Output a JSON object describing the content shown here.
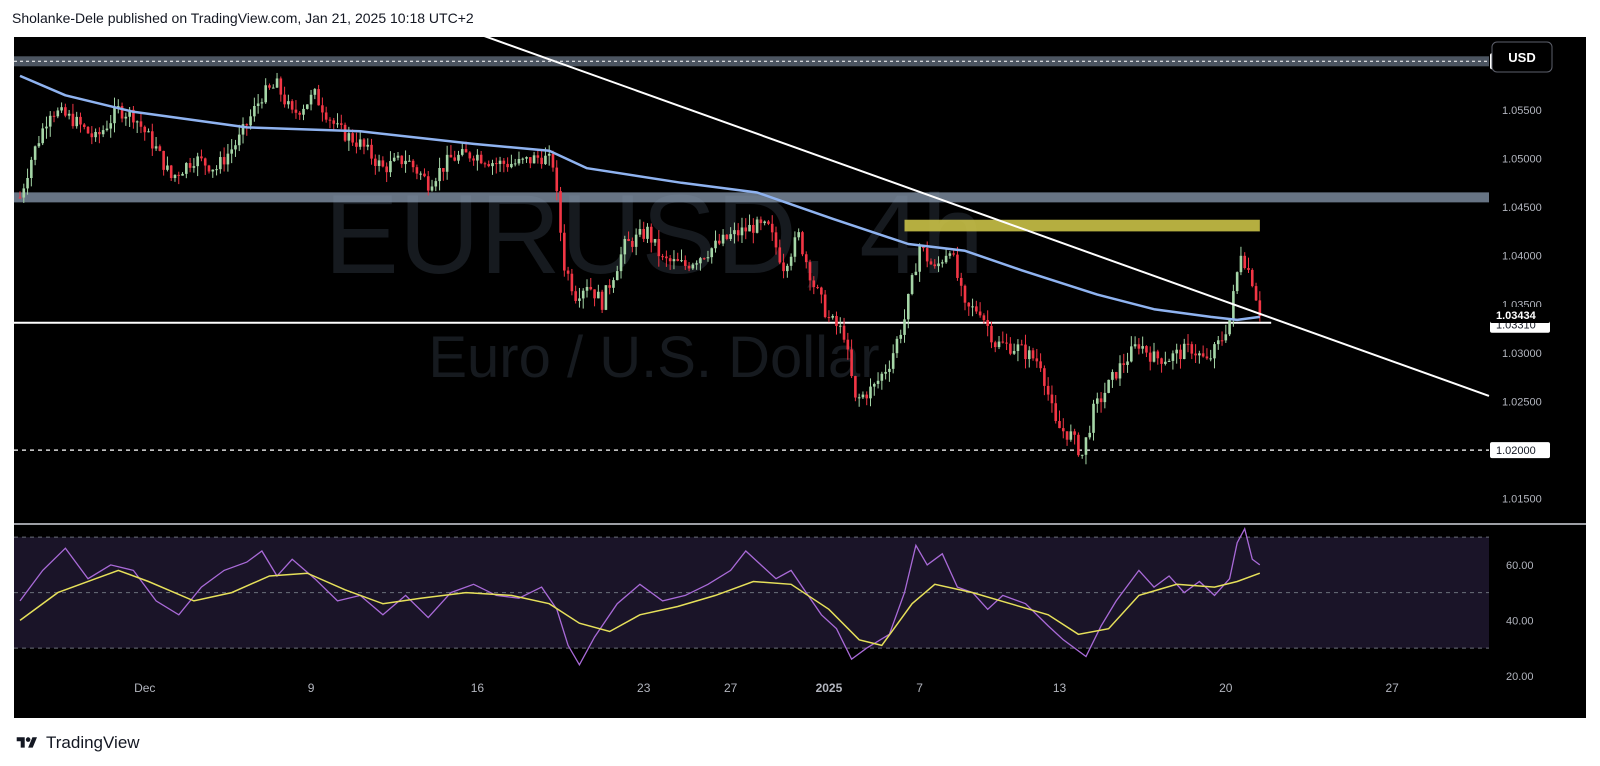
{
  "header": {
    "publisher_line": "Sholanke-Dele published on TradingView.com, Jan 21, 2025 10:18 UTC+2"
  },
  "footer": {
    "brand": "TradingView"
  },
  "colors": {
    "background": "#000000",
    "bullish": "#a5d6a7",
    "bearish": "#f23645",
    "ma": "#8fb3f0",
    "support_band": "#8a9bb0",
    "resistance_zone": "#c9c147",
    "trendline": "#ffffff",
    "rsi_line": "#a96ad8",
    "rsi_signal": "#e6e05a"
  },
  "chart_data": [
    {
      "type": "candlestick",
      "symbol": "EURUSD",
      "timeframe": "4h",
      "watermark_line1": "EURUSD, 4h",
      "watermark_line2": "Euro / U.S. Dollar",
      "currency_button": "USD",
      "ylim": [
        1.0125,
        1.0625
      ],
      "y_ticks": [
        "1.06000",
        "1.05500",
        "1.05000",
        "1.04500",
        "1.04000",
        "1.03500",
        "1.03000",
        "1.02500",
        "1.02000",
        "1.01500"
      ],
      "x_ticks": [
        "Dec",
        "9",
        "16",
        "23",
        "27",
        "2025",
        "7",
        "13",
        "20",
        "27"
      ],
      "price_labels": {
        "current": "1.03434",
        "support_line": "1.03310",
        "upper_band": "1.06000",
        "lower_dashed": "1.02000"
      },
      "levels": {
        "upper_band": 1.06,
        "mid_band": 1.046,
        "resistance_zone": [
          1.0425,
          1.0437
        ],
        "support_line": 1.0331,
        "lower_dashed": 1.02
      },
      "trendline": {
        "start": {
          "bar": 102,
          "price": 1.0655
        },
        "end": {
          "bar": 326,
          "price": 1.0343
        }
      },
      "close_path": [
        {
          "bar": 0,
          "price": 1.046
        },
        {
          "bar": 3,
          "price": 1.05
        },
        {
          "bar": 8,
          "price": 1.055
        },
        {
          "bar": 14,
          "price": 1.054
        },
        {
          "bar": 20,
          "price": 1.052
        },
        {
          "bar": 26,
          "price": 1.055
        },
        {
          "bar": 30,
          "price": 1.0545
        },
        {
          "bar": 36,
          "price": 1.051
        },
        {
          "bar": 40,
          "price": 1.048
        },
        {
          "bar": 46,
          "price": 1.05
        },
        {
          "bar": 52,
          "price": 1.049
        },
        {
          "bar": 58,
          "price": 1.052
        },
        {
          "bar": 64,
          "price": 1.0565
        },
        {
          "bar": 68,
          "price": 1.0575
        },
        {
          "bar": 72,
          "price": 1.0545
        },
        {
          "bar": 78,
          "price": 1.0565
        },
        {
          "bar": 84,
          "price": 1.053
        },
        {
          "bar": 90,
          "price": 1.0515
        },
        {
          "bar": 96,
          "price": 1.049
        },
        {
          "bar": 102,
          "price": 1.05
        },
        {
          "bar": 108,
          "price": 1.0475
        },
        {
          "bar": 114,
          "price": 1.05
        },
        {
          "bar": 120,
          "price": 1.0505
        },
        {
          "bar": 126,
          "price": 1.0495
        },
        {
          "bar": 132,
          "price": 1.0495
        },
        {
          "bar": 138,
          "price": 1.0502
        },
        {
          "bar": 141,
          "price": 1.0495
        },
        {
          "bar": 144,
          "price": 1.039
        },
        {
          "bar": 147,
          "price": 1.036
        },
        {
          "bar": 150,
          "price": 1.0372
        },
        {
          "bar": 154,
          "price": 1.0352
        },
        {
          "bar": 160,
          "price": 1.041
        },
        {
          "bar": 166,
          "price": 1.0425
        },
        {
          "bar": 170,
          "price": 1.0395
        },
        {
          "bar": 176,
          "price": 1.039
        },
        {
          "bar": 182,
          "price": 1.0405
        },
        {
          "bar": 188,
          "price": 1.042
        },
        {
          "bar": 194,
          "price": 1.043
        },
        {
          "bar": 198,
          "price": 1.0428
        },
        {
          "bar": 202,
          "price": 1.039
        },
        {
          "bar": 206,
          "price": 1.042
        },
        {
          "bar": 210,
          "price": 1.037
        },
        {
          "bar": 214,
          "price": 1.0335
        },
        {
          "bar": 218,
          "price": 1.032
        },
        {
          "bar": 221,
          "price": 1.025
        },
        {
          "bar": 226,
          "price": 1.0265
        },
        {
          "bar": 230,
          "price": 1.029
        },
        {
          "bar": 234,
          "price": 1.0335
        },
        {
          "bar": 238,
          "price": 1.041
        },
        {
          "bar": 242,
          "price": 1.0385
        },
        {
          "bar": 246,
          "price": 1.041
        },
        {
          "bar": 250,
          "price": 1.0345
        },
        {
          "bar": 254,
          "price": 1.0345
        },
        {
          "bar": 258,
          "price": 1.031
        },
        {
          "bar": 264,
          "price": 1.0305
        },
        {
          "bar": 270,
          "price": 1.029
        },
        {
          "bar": 274,
          "price": 1.0225
        },
        {
          "bar": 278,
          "price": 1.0215
        },
        {
          "bar": 281,
          "price": 1.0195
        },
        {
          "bar": 284,
          "price": 1.024
        },
        {
          "bar": 290,
          "price": 1.028
        },
        {
          "bar": 296,
          "price": 1.031
        },
        {
          "bar": 300,
          "price": 1.0295
        },
        {
          "bar": 304,
          "price": 1.0295
        },
        {
          "bar": 310,
          "price": 1.0305
        },
        {
          "bar": 314,
          "price": 1.029
        },
        {
          "bar": 318,
          "price": 1.0315
        },
        {
          "bar": 320,
          "price": 1.0335
        },
        {
          "bar": 323,
          "price": 1.0405
        },
        {
          "bar": 326,
          "price": 1.0375
        },
        {
          "bar": 328,
          "price": 1.0343
        }
      ],
      "ma_path": [
        {
          "bar": 0,
          "price": 1.0585
        },
        {
          "bar": 12,
          "price": 1.0565
        },
        {
          "bar": 30,
          "price": 1.0548
        },
        {
          "bar": 60,
          "price": 1.0532
        },
        {
          "bar": 90,
          "price": 1.0528
        },
        {
          "bar": 120,
          "price": 1.0515
        },
        {
          "bar": 140,
          "price": 1.0508
        },
        {
          "bar": 150,
          "price": 1.049
        },
        {
          "bar": 175,
          "price": 1.0475
        },
        {
          "bar": 195,
          "price": 1.0465
        },
        {
          "bar": 215,
          "price": 1.0438
        },
        {
          "bar": 235,
          "price": 1.0412
        },
        {
          "bar": 250,
          "price": 1.0405
        },
        {
          "bar": 265,
          "price": 1.0385
        },
        {
          "bar": 285,
          "price": 1.036
        },
        {
          "bar": 300,
          "price": 1.0345
        },
        {
          "bar": 315,
          "price": 1.0337
        },
        {
          "bar": 322,
          "price": 1.0334
        },
        {
          "bar": 328,
          "price": 1.0337
        }
      ]
    },
    {
      "type": "line",
      "indicator": "RSI",
      "ylim": [
        16,
        74
      ],
      "y_ticks": [
        "60.00",
        "40.00",
        "20.00"
      ],
      "bands": [
        70,
        50,
        30
      ],
      "rsi_path": [
        {
          "bar": 0,
          "price": 47
        },
        {
          "bar": 6,
          "price": 58
        },
        {
          "bar": 12,
          "price": 66
        },
        {
          "bar": 18,
          "price": 55
        },
        {
          "bar": 24,
          "price": 60
        },
        {
          "bar": 30,
          "price": 58
        },
        {
          "bar": 36,
          "price": 47
        },
        {
          "bar": 42,
          "price": 42
        },
        {
          "bar": 48,
          "price": 52
        },
        {
          "bar": 54,
          "price": 58
        },
        {
          "bar": 60,
          "price": 61
        },
        {
          "bar": 64,
          "price": 65
        },
        {
          "bar": 68,
          "price": 56
        },
        {
          "bar": 72,
          "price": 62
        },
        {
          "bar": 78,
          "price": 55
        },
        {
          "bar": 84,
          "price": 47
        },
        {
          "bar": 90,
          "price": 49
        },
        {
          "bar": 96,
          "price": 42
        },
        {
          "bar": 102,
          "price": 49
        },
        {
          "bar": 108,
          "price": 41
        },
        {
          "bar": 114,
          "price": 50
        },
        {
          "bar": 120,
          "price": 53
        },
        {
          "bar": 126,
          "price": 49
        },
        {
          "bar": 132,
          "price": 48
        },
        {
          "bar": 138,
          "price": 52
        },
        {
          "bar": 142,
          "price": 44
        },
        {
          "bar": 145,
          "price": 31
        },
        {
          "bar": 148,
          "price": 24
        },
        {
          "bar": 152,
          "price": 34
        },
        {
          "bar": 158,
          "price": 46
        },
        {
          "bar": 164,
          "price": 53
        },
        {
          "bar": 170,
          "price": 47
        },
        {
          "bar": 176,
          "price": 49
        },
        {
          "bar": 182,
          "price": 53
        },
        {
          "bar": 188,
          "price": 58
        },
        {
          "bar": 192,
          "price": 65
        },
        {
          "bar": 196,
          "price": 60
        },
        {
          "bar": 200,
          "price": 55
        },
        {
          "bar": 204,
          "price": 58
        },
        {
          "bar": 208,
          "price": 50
        },
        {
          "bar": 212,
          "price": 42
        },
        {
          "bar": 216,
          "price": 37
        },
        {
          "bar": 220,
          "price": 26
        },
        {
          "bar": 224,
          "price": 30
        },
        {
          "bar": 230,
          "price": 35
        },
        {
          "bar": 234,
          "price": 50
        },
        {
          "bar": 237,
          "price": 67
        },
        {
          "bar": 240,
          "price": 60
        },
        {
          "bar": 244,
          "price": 64
        },
        {
          "bar": 248,
          "price": 52
        },
        {
          "bar": 252,
          "price": 50
        },
        {
          "bar": 256,
          "price": 44
        },
        {
          "bar": 260,
          "price": 49
        },
        {
          "bar": 266,
          "price": 46
        },
        {
          "bar": 272,
          "price": 38
        },
        {
          "bar": 276,
          "price": 33
        },
        {
          "bar": 282,
          "price": 27
        },
        {
          "bar": 286,
          "price": 38
        },
        {
          "bar": 290,
          "price": 47
        },
        {
          "bar": 296,
          "price": 58
        },
        {
          "bar": 300,
          "price": 52
        },
        {
          "bar": 304,
          "price": 56
        },
        {
          "bar": 308,
          "price": 50
        },
        {
          "bar": 312,
          "price": 54
        },
        {
          "bar": 316,
          "price": 49
        },
        {
          "bar": 320,
          "price": 55
        },
        {
          "bar": 322,
          "price": 68
        },
        {
          "bar": 324,
          "price": 73
        },
        {
          "bar": 326,
          "price": 62
        },
        {
          "bar": 328,
          "price": 60
        }
      ],
      "signal_path": [
        {
          "bar": 0,
          "price": 40
        },
        {
          "bar": 10,
          "price": 50
        },
        {
          "bar": 20,
          "price": 55
        },
        {
          "bar": 26,
          "price": 58
        },
        {
          "bar": 34,
          "price": 54
        },
        {
          "bar": 46,
          "price": 47
        },
        {
          "bar": 56,
          "price": 50
        },
        {
          "bar": 66,
          "price": 56
        },
        {
          "bar": 76,
          "price": 57
        },
        {
          "bar": 86,
          "price": 51
        },
        {
          "bar": 96,
          "price": 46
        },
        {
          "bar": 106,
          "price": 48
        },
        {
          "bar": 118,
          "price": 50
        },
        {
          "bar": 130,
          "price": 49
        },
        {
          "bar": 140,
          "price": 46
        },
        {
          "bar": 148,
          "price": 39
        },
        {
          "bar": 156,
          "price": 36
        },
        {
          "bar": 164,
          "price": 42
        },
        {
          "bar": 174,
          "price": 45
        },
        {
          "bar": 184,
          "price": 49
        },
        {
          "bar": 194,
          "price": 54
        },
        {
          "bar": 204,
          "price": 53
        },
        {
          "bar": 214,
          "price": 44
        },
        {
          "bar": 222,
          "price": 33
        },
        {
          "bar": 228,
          "price": 31
        },
        {
          "bar": 236,
          "price": 46
        },
        {
          "bar": 242,
          "price": 53
        },
        {
          "bar": 252,
          "price": 50
        },
        {
          "bar": 262,
          "price": 46
        },
        {
          "bar": 272,
          "price": 42
        },
        {
          "bar": 280,
          "price": 35
        },
        {
          "bar": 288,
          "price": 37
        },
        {
          "bar": 296,
          "price": 49
        },
        {
          "bar": 306,
          "price": 53
        },
        {
          "bar": 316,
          "price": 52
        },
        {
          "bar": 322,
          "price": 54
        },
        {
          "bar": 328,
          "price": 57
        }
      ]
    }
  ]
}
